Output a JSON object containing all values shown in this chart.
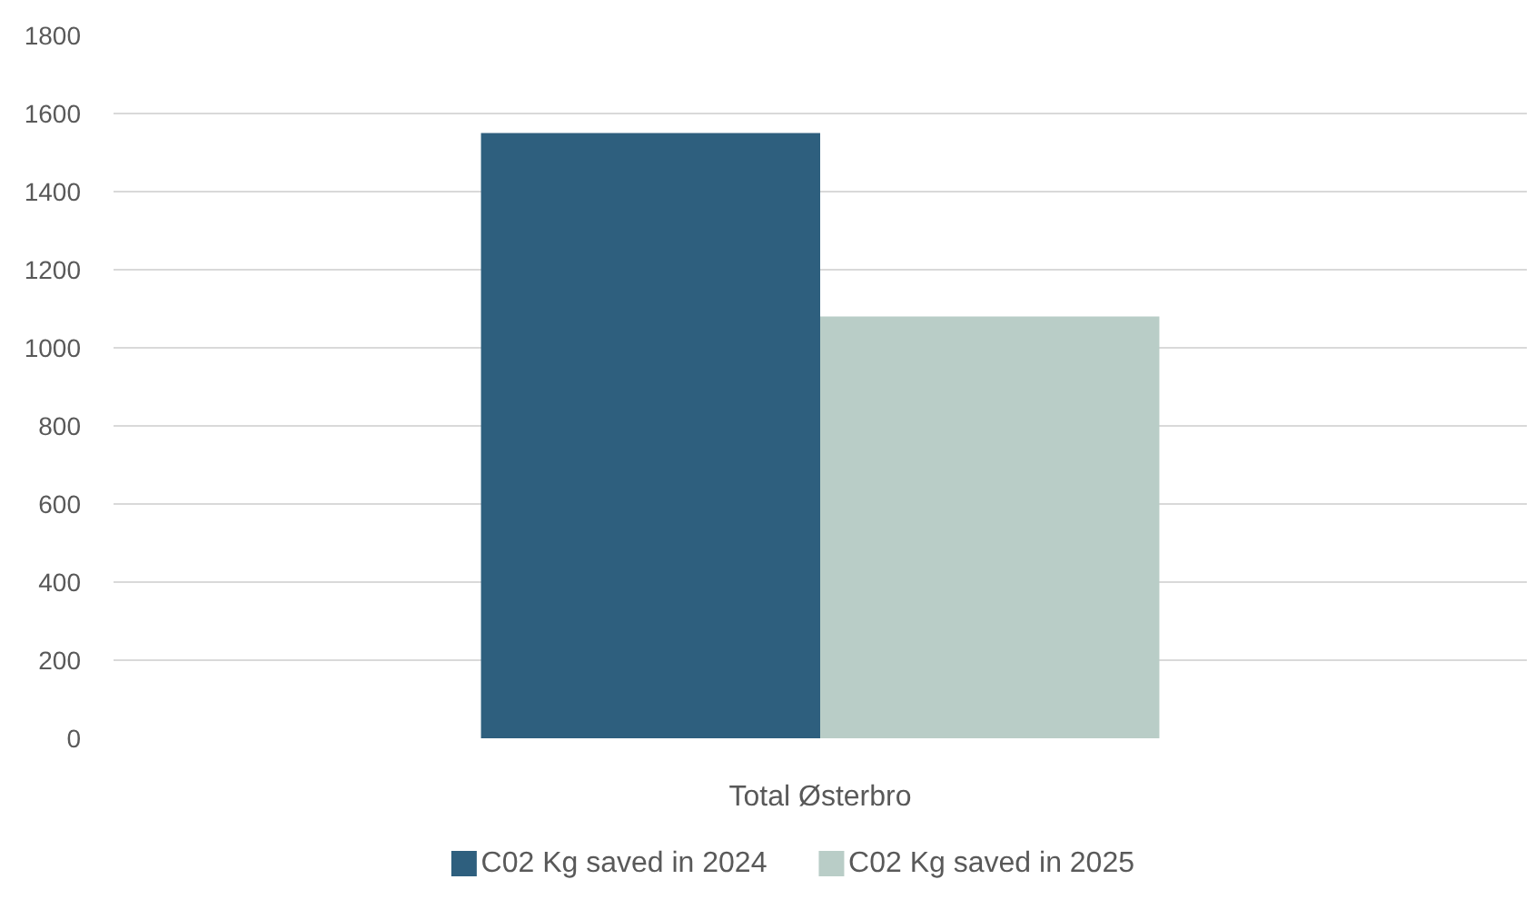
{
  "chart_data": {
    "type": "bar",
    "categories": [
      "Total Østerbro"
    ],
    "series": [
      {
        "name": "C02 Kg saved in 2024",
        "color": "#2e5f7e",
        "values": [
          1550
        ]
      },
      {
        "name": "C02 Kg saved in 2025",
        "color": "#b9cdc7",
        "values": [
          1080
        ]
      }
    ],
    "ylim": [
      0,
      1800
    ],
    "yticks": [
      0,
      200,
      400,
      600,
      800,
      1000,
      1200,
      1400,
      1600,
      1800
    ],
    "grid": "y",
    "legend": "bottom"
  }
}
